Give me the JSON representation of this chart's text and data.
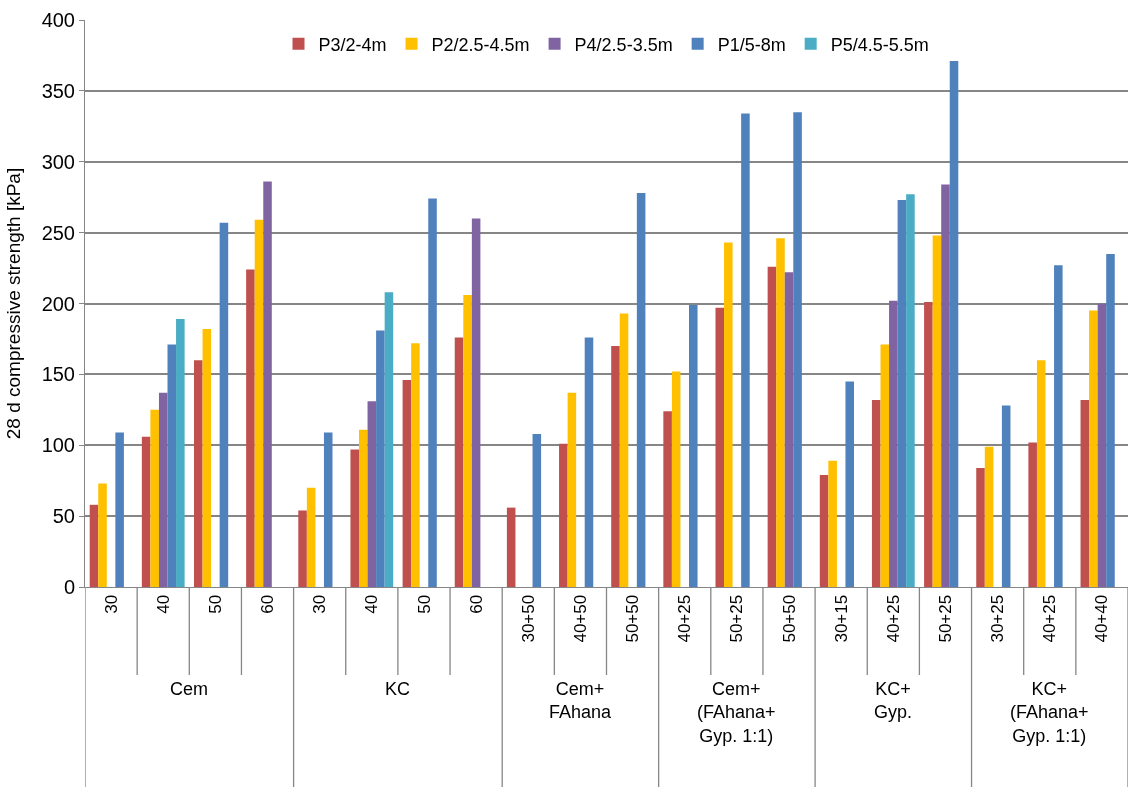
{
  "chart_data": {
    "type": "bar",
    "ylabel": "28 d compressive strength [kPa]",
    "categories": [
      [
        "Cem",
        "30"
      ],
      [
        null,
        "40"
      ],
      [
        null,
        "50"
      ],
      [
        null,
        "60"
      ],
      [
        "KC",
        "30"
      ],
      [
        null,
        "40"
      ],
      [
        null,
        "50"
      ],
      [
        null,
        "60"
      ],
      [
        "Cem+\nFAhana",
        "30+50"
      ],
      [
        null,
        "40+50"
      ],
      [
        null,
        "50+50"
      ],
      [
        "Cem+\n(FAhana+\nGyp. 1:1)",
        "40+25"
      ],
      [
        null,
        "50+25"
      ],
      [
        null,
        "50+50"
      ],
      [
        "KC+\nGyp.",
        "30+15"
      ],
      [
        null,
        "40+25"
      ],
      [
        null,
        "50+25"
      ],
      [
        "KC+\n(FAhana+\nGyp. 1:1)",
        "30+25"
      ],
      [
        null,
        "40+25"
      ],
      [
        null,
        "40+40"
      ]
    ],
    "series": [
      {
        "name": "P3/2-4m",
        "color": "#c0504d",
        "values": [
          58,
          106,
          160,
          224,
          54,
          97,
          146,
          176,
          56,
          101,
          170,
          124,
          197,
          226,
          79,
          132,
          201,
          84,
          102,
          132
        ]
      },
      {
        "name": "P2/2.5-4.5m",
        "color": "#ffc000",
        "values": [
          73,
          125,
          182,
          259,
          70,
          111,
          172,
          206,
          null,
          137,
          193,
          152,
          243,
          246,
          89,
          171,
          248,
          99,
          160,
          195
        ]
      },
      {
        "name": "P4/2.5-3.5m",
        "color": "#8064a2",
        "values": [
          null,
          137,
          null,
          286,
          null,
          131,
          null,
          260,
          null,
          null,
          null,
          null,
          null,
          222,
          null,
          202,
          284,
          null,
          null,
          200
        ]
      },
      {
        "name": "P1/5-8m",
        "color": "#4f81bd",
        "values": [
          109,
          171,
          257,
          null,
          109,
          181,
          274,
          null,
          108,
          176,
          278,
          199,
          334,
          335,
          145,
          273,
          371,
          128,
          227,
          235
        ]
      },
      {
        "name": "P5/4.5-5.5m",
        "color": "#4bacc6",
        "values": [
          null,
          189,
          null,
          null,
          null,
          208,
          null,
          null,
          null,
          null,
          null,
          null,
          null,
          null,
          null,
          277,
          null,
          null,
          null,
          null
        ]
      }
    ],
    "ylim": [
      0,
      400
    ],
    "yticks": [
      0,
      50,
      100,
      150,
      200,
      250,
      300,
      350,
      400
    ],
    "grid": "y",
    "legend": "top"
  }
}
